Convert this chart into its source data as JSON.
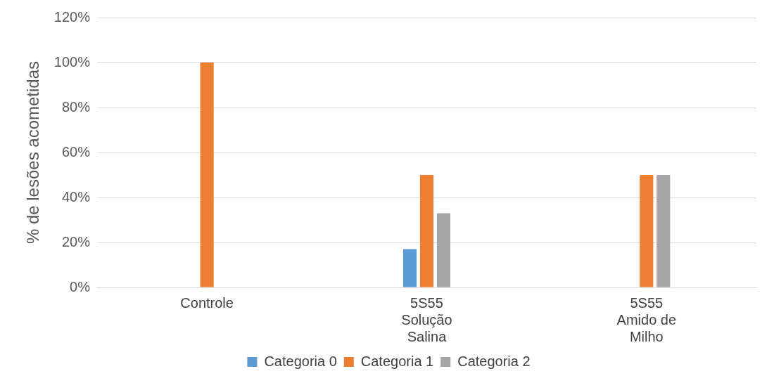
{
  "chart_data": {
    "type": "bar",
    "ylabel": "% de lesões acometidas",
    "categories": [
      "Controle",
      "5S55\nSolução\nSalina",
      "5S55\nAmido de\nMilho"
    ],
    "series": [
      {
        "name": "Categoria 0",
        "color": "#5b9bd5",
        "values": [
          0,
          17,
          0
        ]
      },
      {
        "name": "Categoria 1",
        "color": "#ed7d31",
        "values": [
          100,
          50,
          50
        ]
      },
      {
        "name": "Categoria 2",
        "color": "#a5a5a5",
        "values": [
          0,
          33,
          50
        ]
      }
    ],
    "ylim": [
      0,
      120
    ],
    "yticks": [
      {
        "value": 0,
        "label": "0%"
      },
      {
        "value": 20,
        "label": "20%"
      },
      {
        "value": 40,
        "label": "40%"
      },
      {
        "value": 60,
        "label": "60%"
      },
      {
        "value": 80,
        "label": "80%"
      },
      {
        "value": 100,
        "label": "100%"
      },
      {
        "value": 120,
        "label": "120%"
      }
    ],
    "grid": "y",
    "legend": "bottom"
  }
}
